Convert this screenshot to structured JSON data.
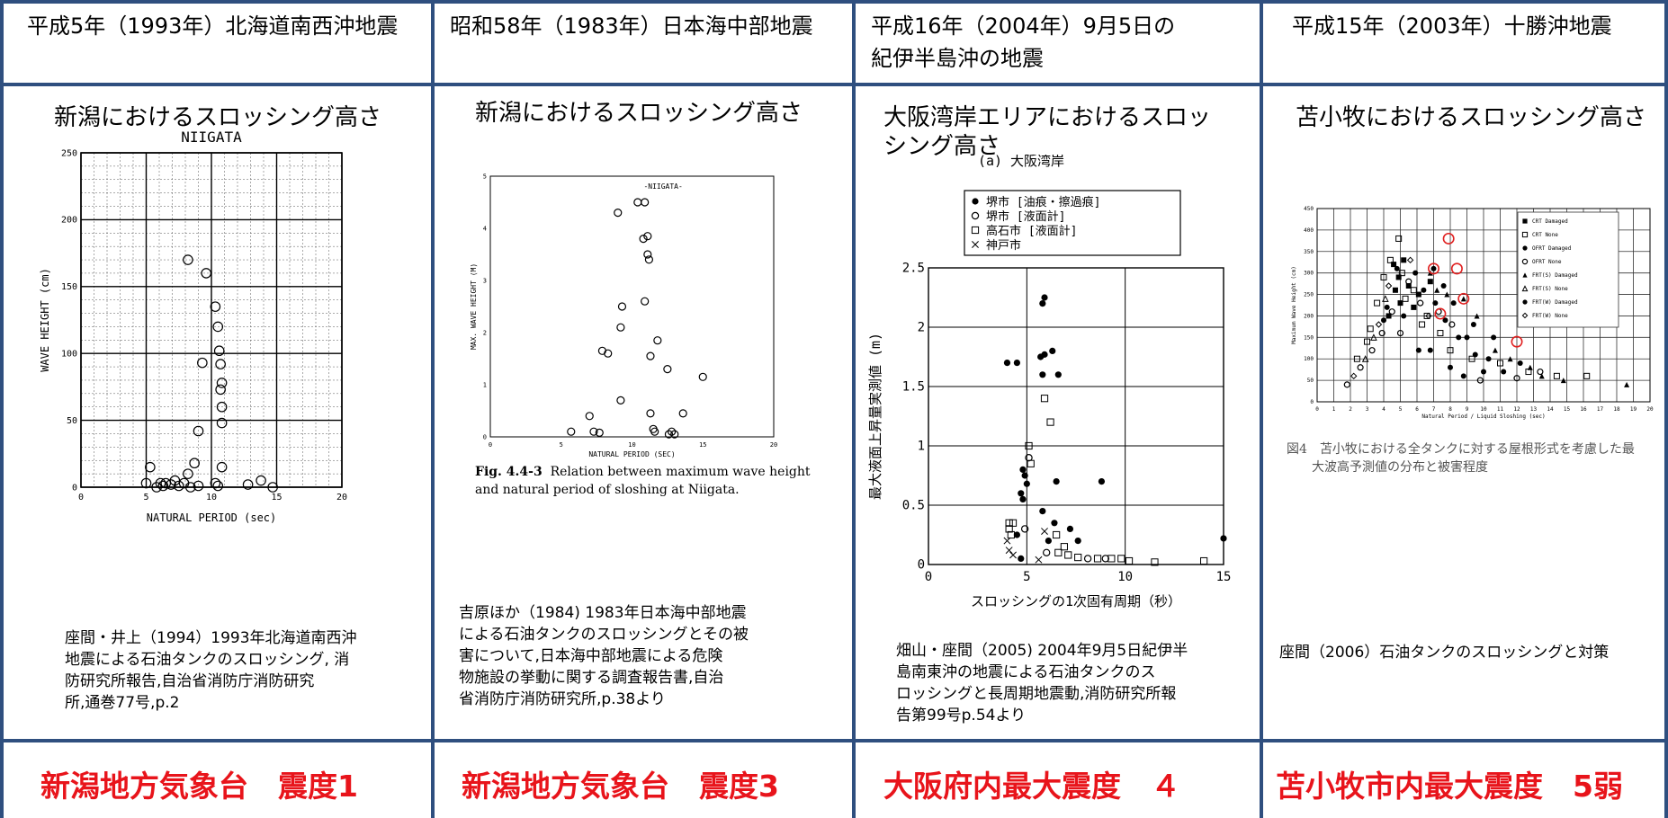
{
  "columns": [
    {
      "header": "平成5年（1993年）北海道南西沖地震",
      "subtitle": "新潟におけるスロッシング高さ",
      "reference": "座間・井上（1994）1993年北海道南西沖\n地震による石油タンクのスロッシング, 消\n防研究所報告,自治省消防庁消防研究\n所,通巻77号,p.2",
      "intensity": "新潟地方気象台　震度1"
    },
    {
      "header": "昭和58年（1983年）日本海中部地震",
      "subtitle": "新潟におけるスロッシング高さ",
      "caption_bold": "Fig. 4.4-3",
      "caption": "Relation between maximum wave height and natural period of sloshing at Niigata.",
      "reference": "吉原ほか（1984) 1983年日本海中部地震\nによる石油タンクのスロッシングとその被\n害について,日本海中部地震による危険\n物施設の挙動に関する調査報告書,自治\n省消防庁消防研究所,p.38より",
      "intensity": "新潟地方気象台　震度3"
    },
    {
      "header_line1": "平成16年（2004年）9月5日の",
      "header_line2": "紀伊半島沖の地震",
      "subtitle_line1": "大阪湾岸エリアにおけるスロッ",
      "subtitle_line2": "シング高さ",
      "reference": "畑山・座間（2005) 2004年9月5日紀伊半\n島南東沖の地震による石油タンクのス\nロッシングと長周期地震動,消防研究所報\n告第99号p.54より",
      "intensity": "大阪府内最大震度　４"
    },
    {
      "header": "平成15年（2003年）十勝沖地震",
      "subtitle": "苫小牧におけるスロッシング高さ",
      "caption": "図4　苫小牧における全タンクに対する屋根形式を考慮した最\n　　大波高予測値の分布と被害程度",
      "reference": "座間（2006）石油タンクのスロッシングと対策",
      "intensity": "苫小牧市内最大震度　5弱"
    }
  ],
  "chart_data": [
    {
      "type": "scatter",
      "title": "NIIGATA",
      "xlabel": "NATURAL PERIOD (sec)",
      "ylabel": "WAVE HEIGHT (cm)",
      "xlim": [
        0,
        20
      ],
      "ylim": [
        0,
        250
      ],
      "xticks": [
        "0",
        "5",
        "10",
        "15",
        "20"
      ],
      "yticks": [
        "0",
        "50",
        "100",
        "150",
        "200",
        "250"
      ],
      "grid": true,
      "series": [
        {
          "marker": "open-circle",
          "points": [
            [
              8.2,
              170
            ],
            [
              9.6,
              160
            ],
            [
              9.3,
              93
            ],
            [
              10.3,
              135
            ],
            [
              10.5,
              120
            ],
            [
              10.6,
              102
            ],
            [
              10.7,
              92
            ],
            [
              10.8,
              78
            ],
            [
              10.7,
              73
            ],
            [
              10.8,
              60
            ],
            [
              10.8,
              48
            ],
            [
              8.7,
              18
            ],
            [
              9.0,
              42
            ],
            [
              8.2,
              10
            ],
            [
              10.8,
              15
            ],
            [
              5.3,
              15
            ],
            [
              5.0,
              3
            ],
            [
              5.8,
              0
            ],
            [
              6.1,
              3
            ],
            [
              6.3,
              1
            ],
            [
              6.5,
              3
            ],
            [
              6.9,
              2
            ],
            [
              7.2,
              5
            ],
            [
              7.5,
              1
            ],
            [
              7.9,
              3
            ],
            [
              8.4,
              0
            ],
            [
              9.0,
              1
            ],
            [
              10.5,
              1
            ],
            [
              12.8,
              2
            ],
            [
              13.8,
              5
            ],
            [
              14.7,
              0
            ],
            [
              10.3,
              3
            ]
          ]
        }
      ]
    },
    {
      "type": "scatter",
      "title": "-NIIGATA-",
      "xlabel": "NATURAL PERIOD (SEC)",
      "ylabel": "MAX. WAVE HEIGHT (M)",
      "xlim": [
        0,
        20
      ],
      "ylim": [
        0,
        5
      ],
      "xticks": [
        "0",
        "5",
        "10",
        "15",
        "20"
      ],
      "yticks": [
        "0",
        "1",
        "2",
        "3",
        "4",
        "5"
      ],
      "grid": false,
      "series": [
        {
          "marker": "open-circle",
          "points": [
            [
              10.4,
              4.5
            ],
            [
              10.9,
              4.5
            ],
            [
              9.0,
              4.3
            ],
            [
              10.8,
              3.8
            ],
            [
              11.1,
              3.85
            ],
            [
              11.1,
              3.5
            ],
            [
              11.2,
              3.4
            ],
            [
              10.9,
              2.6
            ],
            [
              9.3,
              2.5
            ],
            [
              9.2,
              2.1
            ],
            [
              11.8,
              1.85
            ],
            [
              7.9,
              1.65
            ],
            [
              8.3,
              1.6
            ],
            [
              11.3,
              1.55
            ],
            [
              12.5,
              1.3
            ],
            [
              15.0,
              1.15
            ],
            [
              9.2,
              0.7
            ],
            [
              7.0,
              0.4
            ],
            [
              11.3,
              0.45
            ],
            [
              13.6,
              0.45
            ],
            [
              5.7,
              0.1
            ],
            [
              7.3,
              0.1
            ],
            [
              7.7,
              0.08
            ],
            [
              11.5,
              0.15
            ],
            [
              11.6,
              0.1
            ],
            [
              12.6,
              0.05
            ],
            [
              12.8,
              0.1
            ],
            [
              13.0,
              0.05
            ]
          ]
        }
      ]
    },
    {
      "type": "scatter",
      "title": "(a) 大阪湾岸",
      "xlabel": "スロッシングの1次固有周期（秒）",
      "ylabel": "最大液面上昇量実測値 (m)",
      "xlim": [
        0,
        15
      ],
      "ylim": [
        0,
        2.5
      ],
      "xticks": [
        "0",
        "5",
        "10",
        "15"
      ],
      "yticks": [
        "0",
        "0.5",
        "1",
        "1.5",
        "2",
        "2.5"
      ],
      "grid": true,
      "legend_position": "top",
      "series": [
        {
          "name": "堺市 [油痕・擦過痕]",
          "marker": "filled-circle",
          "points": [
            [
              4.0,
              1.7
            ],
            [
              4.5,
              1.7
            ],
            [
              5.9,
              2.25
            ],
            [
              5.8,
              2.2
            ],
            [
              5.7,
              1.75
            ],
            [
              5.9,
              1.77
            ],
            [
              6.3,
              1.8
            ],
            [
              6.6,
              1.6
            ],
            [
              5.8,
              1.6
            ],
            [
              4.8,
              0.8
            ],
            [
              4.9,
              0.75
            ],
            [
              5.0,
              0.68
            ],
            [
              4.7,
              0.6
            ],
            [
              4.8,
              0.55
            ],
            [
              6.5,
              0.7
            ],
            [
              8.8,
              0.7
            ],
            [
              5.8,
              0.45
            ],
            [
              6.4,
              0.35
            ],
            [
              7.2,
              0.3
            ],
            [
              7.6,
              0.2
            ],
            [
              4.5,
              0.25
            ],
            [
              4.7,
              0.05
            ],
            [
              15.0,
              0.22
            ],
            [
              6.1,
              0.2
            ]
          ]
        },
        {
          "name": "堺市 [液面計]",
          "marker": "open-circle",
          "points": [
            [
              5.1,
              0.9
            ],
            [
              4.9,
              0.3
            ],
            [
              6.0,
              0.1
            ],
            [
              8.1,
              0.05
            ],
            [
              9.0,
              0.05
            ]
          ]
        },
        {
          "name": "高石市 [液面計]",
          "marker": "open-square",
          "points": [
            [
              5.9,
              1.4
            ],
            [
              6.2,
              1.2
            ],
            [
              5.1,
              1.0
            ],
            [
              5.2,
              0.85
            ],
            [
              4.1,
              0.35
            ],
            [
              4.3,
              0.35
            ],
            [
              4.1,
              0.3
            ],
            [
              4.2,
              0.25
            ],
            [
              6.5,
              0.25
            ],
            [
              6.9,
              0.15
            ],
            [
              6.6,
              0.1
            ],
            [
              7.1,
              0.08
            ],
            [
              7.6,
              0.06
            ],
            [
              8.6,
              0.05
            ],
            [
              9.3,
              0.05
            ],
            [
              9.8,
              0.05
            ],
            [
              10.2,
              0.03
            ],
            [
              11.5,
              0.02
            ],
            [
              14.0,
              0.03
            ]
          ]
        },
        {
          "name": "神戸市",
          "marker": "x",
          "points": [
            [
              4.0,
              0.2
            ],
            [
              4.1,
              0.12
            ],
            [
              4.3,
              0.08
            ],
            [
              5.9,
              0.28
            ],
            [
              5.6,
              0.04
            ]
          ]
        }
      ]
    },
    {
      "type": "scatter",
      "title": "",
      "xlabel": "Natural Period / Liquid Sloshing (sec)",
      "ylabel": "Maximum Wave Height (cm)",
      "xlim": [
        0,
        20
      ],
      "ylim": [
        0,
        450
      ],
      "xticks": [
        "0",
        "1",
        "2",
        "3",
        "4",
        "5",
        "6",
        "7",
        "8",
        "9",
        "10",
        "11",
        "12",
        "13",
        "14",
        "15",
        "16",
        "17",
        "18",
        "19",
        "20"
      ],
      "yticks": [
        "0",
        "50",
        "100",
        "150",
        "200",
        "250",
        "300",
        "350",
        "400",
        "450"
      ],
      "grid": true,
      "legend_position": "top-right",
      "series": [
        {
          "name": "CRT Damaged",
          "marker": "filled-square",
          "points": [
            [
              4.6,
              320
            ],
            [
              4.9,
              290
            ],
            [
              5.2,
              330
            ],
            [
              5.5,
              270
            ],
            [
              6.1,
              250
            ],
            [
              6.8,
              280
            ],
            [
              4.3,
              200
            ],
            [
              5.0,
              230
            ],
            [
              4.7,
              260
            ],
            [
              5.8,
              220
            ]
          ]
        },
        {
          "name": "CRT None",
          "marker": "open-square",
          "points": [
            [
              3.2,
              170
            ],
            [
              3.6,
              230
            ],
            [
              4.0,
              290
            ],
            [
              4.4,
              330
            ],
            [
              4.9,
              380
            ],
            [
              5.3,
              240
            ],
            [
              5.8,
              260
            ],
            [
              6.6,
              200
            ],
            [
              7.4,
              160
            ],
            [
              2.4,
              100
            ],
            [
              3.0,
              140
            ],
            [
              5.1,
              300
            ],
            [
              6.3,
              180
            ],
            [
              8.0,
              120
            ],
            [
              9.3,
              100
            ],
            [
              11.0,
              90
            ],
            [
              12.7,
              70
            ],
            [
              14.4,
              60
            ],
            [
              16.2,
              60
            ]
          ]
        },
        {
          "name": "OFRT Damaged",
          "marker": "filled-circle",
          "points": [
            [
              4.2,
              220
            ],
            [
              4.8,
              310
            ],
            [
              5.2,
              200
            ],
            [
              5.9,
              300
            ],
            [
              6.4,
              260
            ],
            [
              7.1,
              230
            ],
            [
              7.7,
              190
            ],
            [
              8.5,
              150
            ],
            [
              9.5,
              110
            ],
            [
              10.3,
              100
            ],
            [
              11.2,
              70
            ],
            [
              4.0,
              190
            ],
            [
              6.8,
              120
            ],
            [
              8.0,
              80
            ],
            [
              9.0,
              150
            ]
          ]
        },
        {
          "name": "OFRT None",
          "marker": "open-circle",
          "points": [
            [
              1.8,
              40
            ],
            [
              2.6,
              80
            ],
            [
              3.3,
              120
            ],
            [
              3.9,
              160
            ],
            [
              4.5,
              210
            ],
            [
              5.5,
              280
            ],
            [
              6.2,
              230
            ],
            [
              7.3,
              210
            ],
            [
              8.1,
              180
            ],
            [
              9.8,
              50
            ],
            [
              12.0,
              55
            ],
            [
              13.4,
              70
            ],
            [
              5.0,
              160
            ]
          ]
        },
        {
          "name": "FRT(S) Damaged",
          "marker": "filled-triangle",
          "points": [
            [
              6.8,
              300
            ],
            [
              7.2,
              260
            ],
            [
              7.8,
              250
            ],
            [
              8.8,
              240
            ],
            [
              9.6,
              200
            ],
            [
              10.7,
              120
            ],
            [
              11.6,
              100
            ],
            [
              12.8,
              80
            ],
            [
              13.5,
              60
            ],
            [
              14.8,
              50
            ],
            [
              18.6,
              40
            ]
          ]
        },
        {
          "name": "FRT(S) None",
          "marker": "open-triangle",
          "points": [
            [
              2.9,
              100
            ],
            [
              3.4,
              150
            ],
            [
              4.1,
              240
            ]
          ]
        },
        {
          "name": "FRT(W) Damaged",
          "marker": "filled-circle",
          "points": [
            [
              7.0,
              310
            ],
            [
              7.6,
              270
            ],
            [
              8.2,
              230
            ],
            [
              9.4,
              180
            ],
            [
              10.6,
              150
            ],
            [
              12.2,
              90
            ],
            [
              6.1,
              120
            ],
            [
              8.8,
              60
            ],
            [
              10.0,
              70
            ]
          ]
        },
        {
          "name": "FRT(W) None",
          "marker": "open-diamond",
          "points": [
            [
              2.2,
              60
            ],
            [
              3.7,
              180
            ],
            [
              4.3,
              270
            ],
            [
              5.6,
              330
            ],
            [
              6.7,
              200
            ]
          ]
        },
        {
          "name": "",
          "marker": "red-ring",
          "color": "#e02020",
          "points": [
            [
              7.0,
              310
            ],
            [
              7.9,
              380
            ],
            [
              8.4,
              310
            ],
            [
              7.4,
              205
            ],
            [
              8.8,
              240
            ],
            [
              12.0,
              140
            ]
          ]
        }
      ]
    }
  ]
}
